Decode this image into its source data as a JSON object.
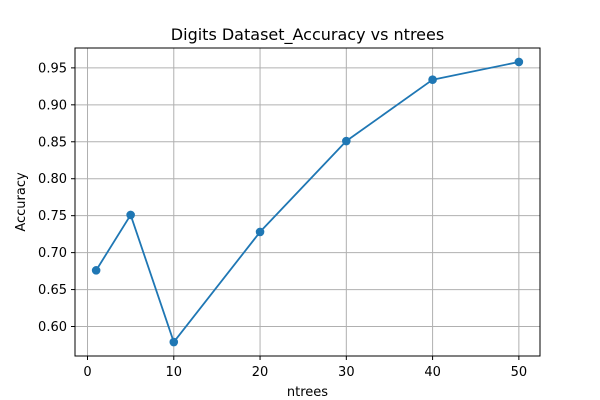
{
  "chart_data": {
    "type": "line",
    "title": "Digits Dataset_Accuracy vs ntrees",
    "xlabel": "ntrees",
    "ylabel": "Accuracy",
    "x": [
      1,
      5,
      10,
      20,
      30,
      40,
      50
    ],
    "series": [
      {
        "values": [
          0.676,
          0.751,
          0.579,
          0.728,
          0.851,
          0.934,
          0.958
        ],
        "color": "#1f77b4",
        "marker": "circle"
      }
    ],
    "xlim": [
      -1.45,
      52.45
    ],
    "ylim": [
      0.5601,
      0.9769
    ],
    "xticks": [
      0,
      10,
      20,
      30,
      40,
      50
    ],
    "xtick_labels": [
      "0",
      "10",
      "20",
      "30",
      "40",
      "50"
    ],
    "yticks": [
      0.6,
      0.65,
      0.7,
      0.75,
      0.8,
      0.85,
      0.9,
      0.95
    ],
    "ytick_labels": [
      "0.60",
      "0.65",
      "0.70",
      "0.75",
      "0.80",
      "0.85",
      "0.90",
      "0.95"
    ],
    "grid": true,
    "legend": false
  }
}
